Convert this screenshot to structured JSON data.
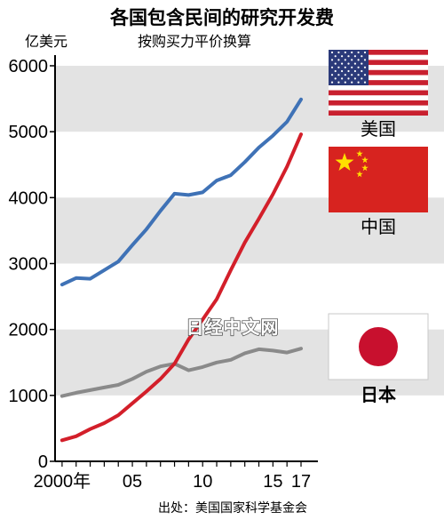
{
  "header": {
    "title": "各国包含民间的研究开发费",
    "unit_label": "亿美元",
    "method_label": "按购买力平价换算"
  },
  "source": "出处：美国国家科学基金会",
  "watermark": "日经中文网",
  "colors": {
    "usa": "#3f72b6",
    "china": "#d31f2a",
    "japan": "#8a8a8a",
    "band": "#e3e3e3"
  },
  "chart_data": {
    "type": "line",
    "title": "各国包含民间的研究开发费",
    "ylabel": "亿美元",
    "ylim": [
      0,
      6000
    ],
    "yticks": [
      0,
      1000,
      2000,
      3000,
      4000,
      5000,
      6000
    ],
    "xlim": [
      2000,
      2017
    ],
    "xticks": [
      {
        "value": 2000,
        "label": "2000年"
      },
      {
        "value": 2005,
        "label": "05"
      },
      {
        "value": 2010,
        "label": "10"
      },
      {
        "value": 2015,
        "label": "15"
      },
      {
        "value": 2017,
        "label": "17"
      }
    ],
    "x": [
      2000,
      2001,
      2002,
      2003,
      2004,
      2005,
      2006,
      2007,
      2008,
      2009,
      2010,
      2011,
      2012,
      2013,
      2014,
      2015,
      2016,
      2017
    ],
    "series": [
      {
        "name": "美国",
        "key": "usa",
        "values": [
          2680,
          2780,
          2770,
          2900,
          3030,
          3280,
          3520,
          3800,
          4060,
          4040,
          4080,
          4260,
          4340,
          4540,
          4760,
          4940,
          5150,
          5490
        ]
      },
      {
        "name": "中国",
        "key": "china",
        "values": [
          320,
          380,
          490,
          580,
          700,
          880,
          1060,
          1250,
          1480,
          1850,
          2150,
          2460,
          2900,
          3320,
          3680,
          4050,
          4470,
          4960
        ]
      },
      {
        "name": "日本",
        "key": "japan",
        "values": [
          990,
          1040,
          1080,
          1120,
          1160,
          1250,
          1360,
          1440,
          1480,
          1380,
          1430,
          1500,
          1540,
          1640,
          1700,
          1680,
          1650,
          1710
        ]
      }
    ],
    "legend": [
      {
        "label": "美国",
        "flag": "usa-flag",
        "key": "usa"
      },
      {
        "label": "中国",
        "flag": "china-flag",
        "key": "china"
      },
      {
        "label": "日本",
        "flag": "japan-flag",
        "key": "japan"
      }
    ],
    "grid": "alternating horizontal bands"
  }
}
